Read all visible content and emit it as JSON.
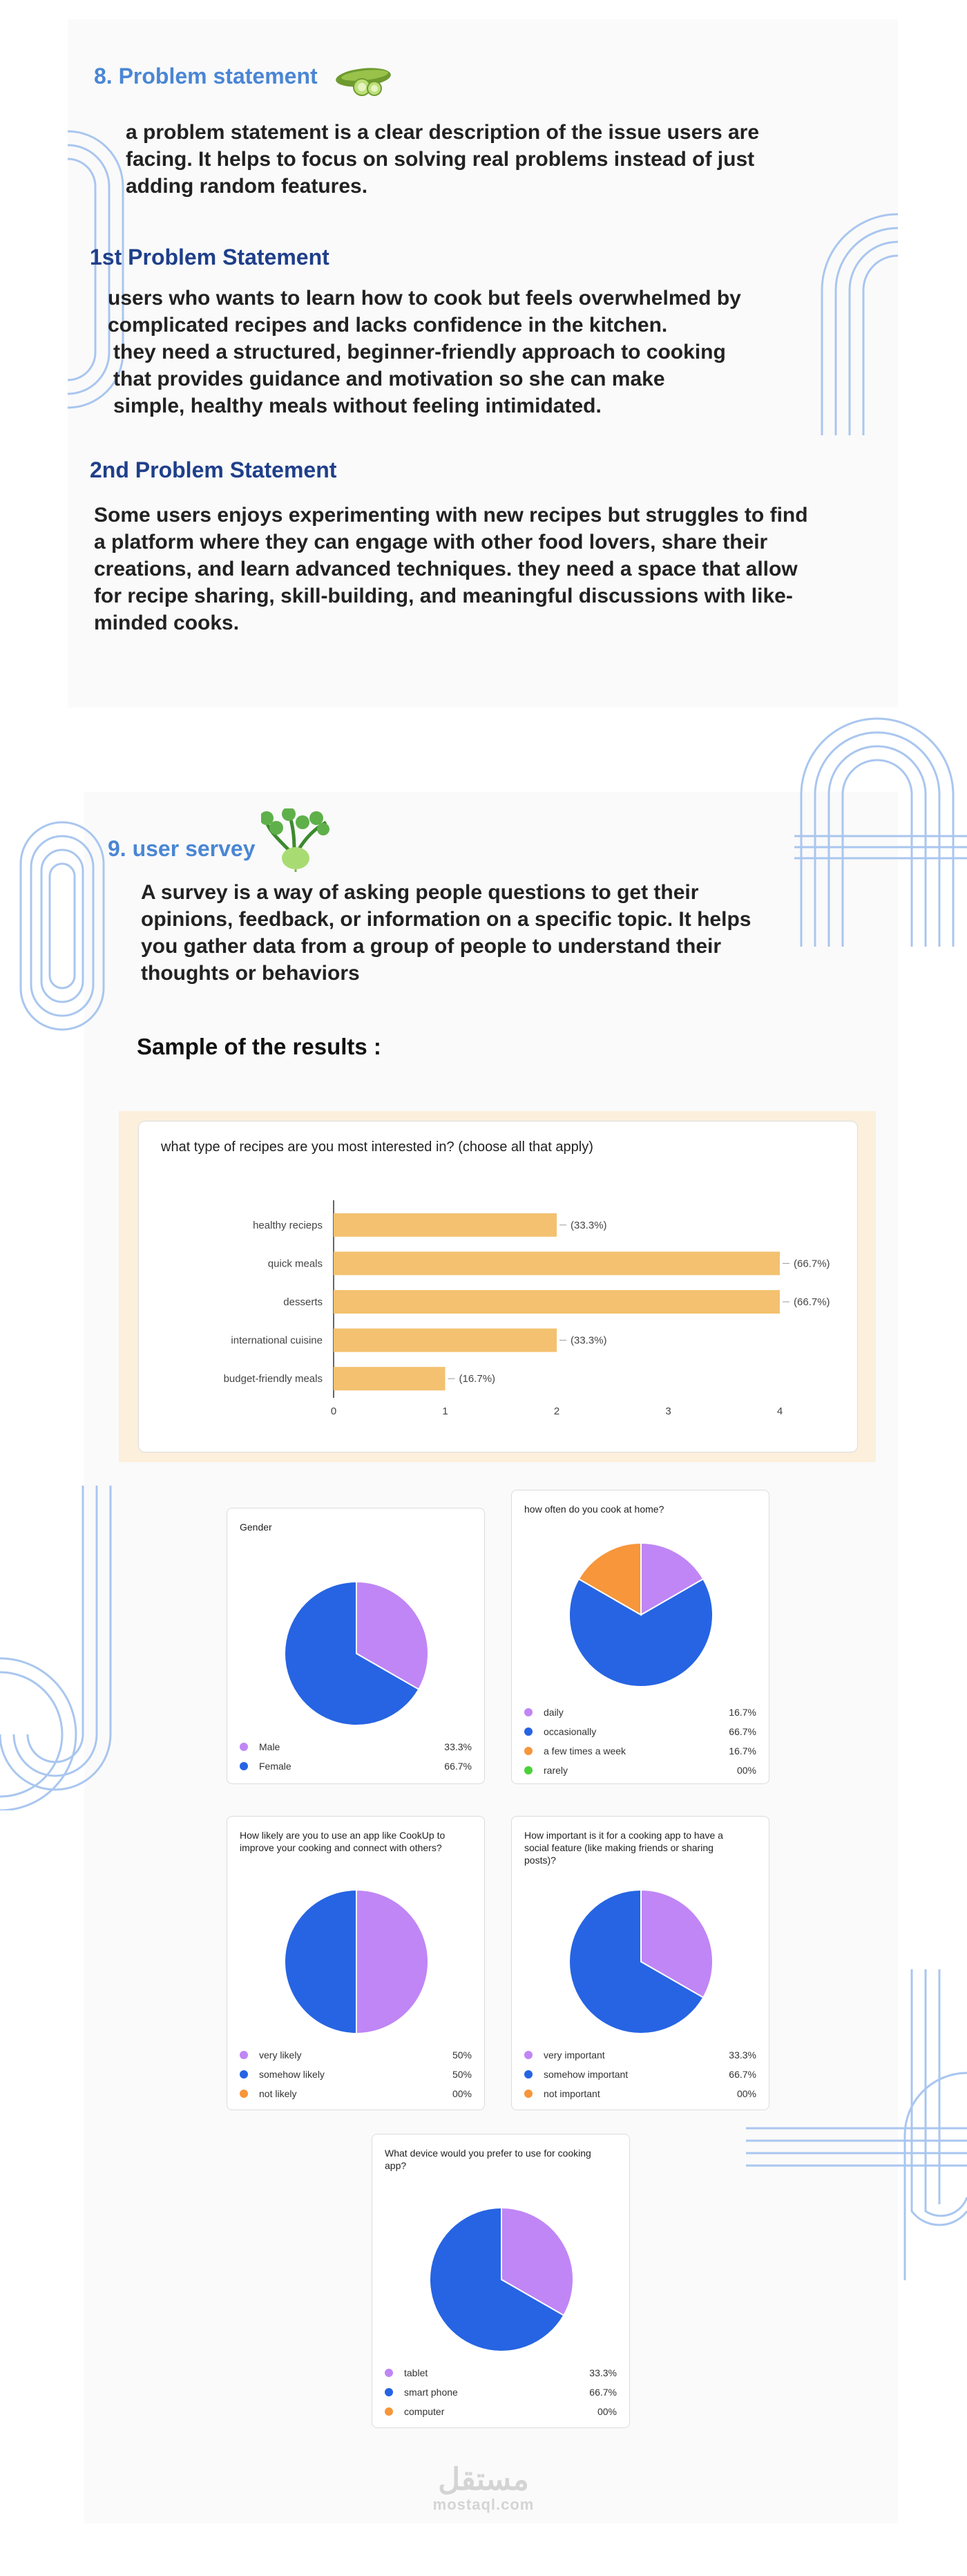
{
  "problem": {
    "title": "8. Problem statement",
    "intro": [
      "a problem statement is a clear description of the issue users are",
      "facing. It helps to focus on solving real problems instead of just",
      "adding random features."
    ],
    "ps1": {
      "title": "1st  Problem Statement",
      "lines": [
        "users who wants to learn how to cook but feels overwhelmed by",
        "complicated recipes and lacks confidence in the kitchen.",
        "they need a structured, beginner-friendly approach to cooking",
        "that provides  guidance and motivation so she can make",
        "simple, healthy meals without feeling intimidated."
      ]
    },
    "ps2": {
      "title": "2nd  Problem Statement",
      "lines": [
        "Some users enjoys experimenting with new recipes but struggles to find",
        "a platform where they can engage with other food lovers, share their",
        "creations, and learn advanced techniques. they need a space that allow",
        "for recipe sharing, skill-building, and meaningful discussions with like-",
        "minded cooks."
      ]
    }
  },
  "survey": {
    "title": "9. user servey",
    "intro": [
      "A survey is a way of asking people questions to get their",
      "opinions, feedback, or information on a specific topic. It helps",
      "you gather data from a group of people to understand their",
      "thoughts or behaviors"
    ],
    "results_heading": "Sample of the results :"
  },
  "colors": {
    "purple": "#c086f5",
    "blue": "#2664e3",
    "orange": "#f7963b",
    "green": "#4cd13a",
    "bar": "#f3c16f"
  },
  "footer": {
    "logo_ar": "مستقل",
    "logo_en": "mostaql.com"
  },
  "chart_data": [
    {
      "type": "bar",
      "title": "what type of recipes are you most interested in? (choose all that apply)",
      "categories": [
        "healthy recieps",
        "quick meals",
        "desserts",
        "international cuisine",
        "budget-friendly meals"
      ],
      "values": [
        2,
        4,
        4,
        2,
        1
      ],
      "value_labels": [
        "(33.3%)",
        "(66.7%)",
        "(66.7%)",
        "(33.3%)",
        "(16.7%)"
      ],
      "xlim": [
        0,
        4
      ],
      "xticks": [
        "0",
        "1",
        "2",
        "3",
        "4"
      ]
    },
    {
      "type": "pie",
      "title": "Gender",
      "labels": [
        "Male",
        "Female"
      ],
      "values": [
        33.3,
        66.7
      ],
      "value_labels": [
        "33.3%",
        "66.7%"
      ],
      "colors": [
        "#c086f5",
        "#2664e3"
      ]
    },
    {
      "type": "pie",
      "title": "how often do you cook at home?",
      "labels": [
        "daily",
        "occasionally",
        "a few times a week",
        "rarely"
      ],
      "values": [
        16.7,
        66.7,
        16.7,
        0
      ],
      "value_labels": [
        "16.7%",
        "66.7%",
        "16.7%",
        "00%"
      ],
      "colors": [
        "#c086f5",
        "#2664e3",
        "#f7963b",
        "#4cd13a"
      ]
    },
    {
      "type": "pie",
      "title": "How likely are you to use an app like CookUp to improve your cooking and connect with others?",
      "labels": [
        "very likely",
        "somehow likely",
        "not likely"
      ],
      "values": [
        50,
        50,
        0
      ],
      "value_labels": [
        "50%",
        "50%",
        "00%"
      ],
      "colors": [
        "#c086f5",
        "#2664e3",
        "#f7963b"
      ]
    },
    {
      "type": "pie",
      "title": "How important is it for a cooking app to have a social feature (like making friends or sharing posts)?",
      "labels": [
        "very important",
        "somehow important",
        "not important"
      ],
      "values": [
        33.3,
        66.7,
        0
      ],
      "value_labels": [
        "33.3%",
        "66.7%",
        "00%"
      ],
      "colors": [
        "#c086f5",
        "#2664e3",
        "#f7963b"
      ]
    },
    {
      "type": "pie",
      "title": "What device would you prefer to use for cooking app?",
      "labels": [
        "tablet",
        "smart phone",
        "computer"
      ],
      "values": [
        33.3,
        66.7,
        0
      ],
      "value_labels": [
        "33.3%",
        "66.7%",
        "00%"
      ],
      "colors": [
        "#c086f5",
        "#2664e3",
        "#f7963b"
      ]
    }
  ]
}
